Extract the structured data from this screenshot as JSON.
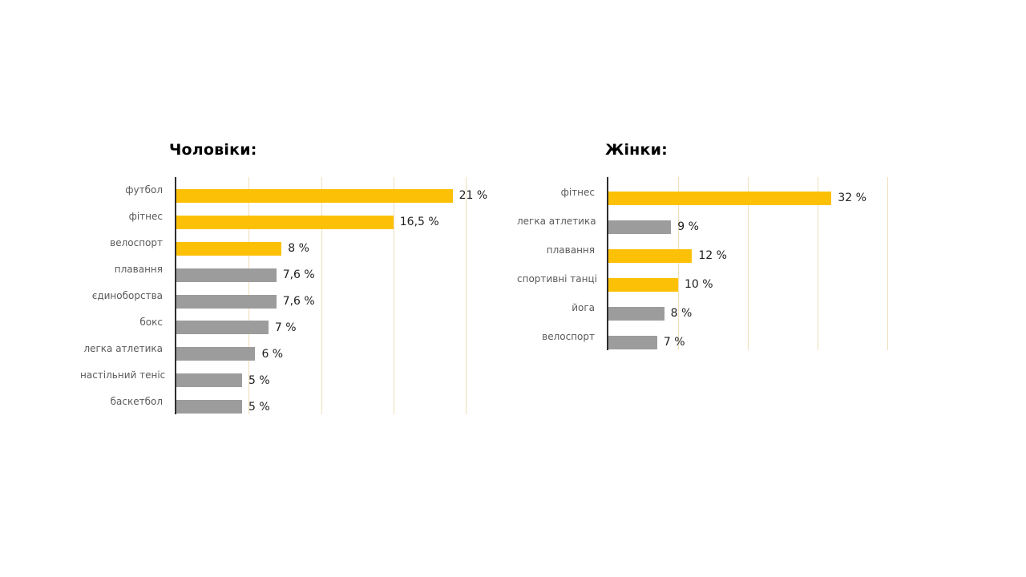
{
  "page": {
    "background": "#ffffff"
  },
  "colors": {
    "yellow": "#FCC107",
    "gray": "#9C9C9C",
    "gridline": "#F0DFBA",
    "axis": "#2E2E2E",
    "category_label": "#5A5A5A",
    "value_label": "#212121",
    "title": "#000000"
  },
  "chart_data": [
    {
      "type": "bar",
      "orientation": "horizontal",
      "title": "Чоловіки:",
      "categories": [
        "футбол",
        "фітнес",
        "велоспорт",
        "плавання",
        "єдиноборства",
        "бокс",
        "легка атлетика",
        "настільний теніс",
        "баскетбол"
      ],
      "values": [
        21,
        16.5,
        8,
        7.6,
        7.6,
        7,
        6,
        5,
        5
      ],
      "value_labels": [
        "21 %",
        "16,5 %",
        "8 %",
        "7,6 %",
        "7,6 %",
        "7 %",
        "6 %",
        "5 %",
        "5 %"
      ],
      "bar_colors": [
        "yellow",
        "yellow",
        "yellow",
        "gray",
        "gray",
        "gray",
        "gray",
        "gray",
        "gray"
      ],
      "xlim": [
        0,
        22
      ],
      "gridline_count": 4,
      "grid": true,
      "legend": "none",
      "xlabel": "",
      "ylabel": ""
    },
    {
      "type": "bar",
      "orientation": "horizontal",
      "title": "Жінки:",
      "categories": [
        "фітнес",
        "легка атлетика",
        "плавання",
        "спортивні танці",
        "йога",
        "велоспорт"
      ],
      "values": [
        32,
        9,
        12,
        10,
        8,
        7
      ],
      "value_labels": [
        "32 %",
        "9 %",
        "12 %",
        "10 %",
        "8 %",
        "7 %"
      ],
      "bar_colors": [
        "yellow",
        "gray",
        "yellow",
        "yellow",
        "gray",
        "gray"
      ],
      "xlim": [
        0,
        40
      ],
      "gridline_count": 4,
      "grid": true,
      "legend": "none",
      "xlabel": "",
      "ylabel": ""
    }
  ]
}
